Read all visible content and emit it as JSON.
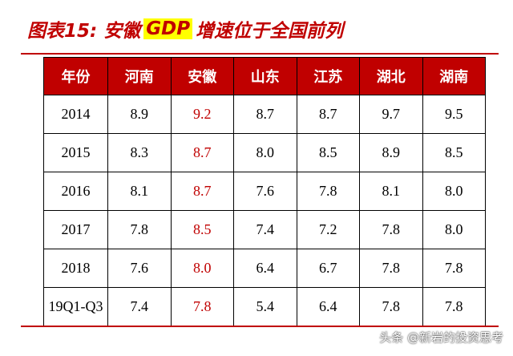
{
  "title": {
    "prefix": "图表15:  安徽",
    "highlight": "GDP",
    "suffix": "增速位于全国前列"
  },
  "table": {
    "headers": [
      "年份",
      "河南",
      "安徽",
      "山东",
      "江苏",
      "湖北",
      "湖南"
    ],
    "rows": [
      [
        "2014",
        "8.9",
        "9.2",
        "8.7",
        "8.7",
        "9.7",
        "9.5"
      ],
      [
        "2015",
        "8.3",
        "8.7",
        "8.0",
        "8.5",
        "8.9",
        "8.5"
      ],
      [
        "2016",
        "8.1",
        "8.7",
        "7.6",
        "7.8",
        "8.1",
        "8.0"
      ],
      [
        "2017",
        "7.8",
        "8.5",
        "7.4",
        "7.2",
        "7.8",
        "8.0"
      ],
      [
        "2018",
        "7.6",
        "8.0",
        "6.4",
        "6.7",
        "7.8",
        "7.8"
      ],
      [
        "19Q1-Q3",
        "7.4",
        "7.8",
        "5.4",
        "6.4",
        "7.8",
        "7.8"
      ]
    ]
  },
  "watermark": "头条 @新岩的投资思考",
  "colors": {
    "accent": "#c00000",
    "highlight": "#ffff00"
  }
}
